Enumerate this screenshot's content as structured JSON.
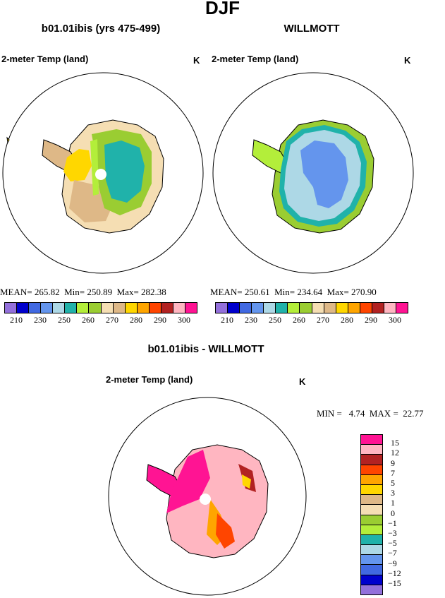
{
  "figure_title": "DJF",
  "panels": [
    {
      "id": "model",
      "title": "b01.01ibis (yrs 475-499)",
      "variable": "2-meter Temp (land)",
      "units": "K",
      "mean_label": "MEAN=",
      "mean": "265.82",
      "min_label": "Min=",
      "min": "250.89",
      "max_label": "Max=",
      "max": "282.38"
    },
    {
      "id": "obs",
      "title": "WILLMOTT",
      "variable": "2-meter Temp (land)",
      "units": "K",
      "mean_label": "MEAN=",
      "mean": "250.61",
      "min_label": "Min=",
      "min": "234.64",
      "max_label": "Max=",
      "max": "270.90"
    },
    {
      "id": "diff",
      "title": "b01.01ibis - WILLMOTT",
      "variable": "2-meter Temp (land)",
      "units": "K",
      "min_label": "MIN =",
      "min": "4.74",
      "max_label": "MAX =",
      "max": "22.77"
    }
  ],
  "temp_colorbar": {
    "colors": [
      "#9370db",
      "#0000cd",
      "#4169e1",
      "#6495ed",
      "#add8e6",
      "#20b2aa",
      "#b3ee3a",
      "#9acd32",
      "#f5deb3",
      "#deb887",
      "#ffd700",
      "#ffa500",
      "#ff4500",
      "#b22222",
      "#ffb6c1",
      "#ff1493"
    ],
    "labels": [
      "210",
      "230",
      "250",
      "260",
      "270",
      "280",
      "290",
      "300"
    ]
  },
  "diff_colorbar": {
    "colors_top_to_bottom": [
      "#ff1493",
      "#ffb6c1",
      "#b22222",
      "#ff4500",
      "#ffa500",
      "#ffd700",
      "#deb887",
      "#f5deb3",
      "#9acd32",
      "#b3ee3a",
      "#20b2aa",
      "#add8e6",
      "#6495ed",
      "#4169e1",
      "#0000cd",
      "#9370db"
    ],
    "labels_top_to_bottom": [
      "15",
      "12",
      "9",
      "7",
      "5",
      "3",
      "1",
      "0",
      "−1",
      "−3",
      "−5",
      "−7",
      "−9",
      "−12",
      "−15"
    ]
  },
  "chart_data": [
    {
      "type": "heatmap",
      "title": "b01.01ibis (yrs 475-499)",
      "subtitle": "2-meter Temp (land)",
      "units": "K",
      "projection": "polar stereographic (Antarctica)",
      "mean": 265.82,
      "min": 250.89,
      "max": 282.38,
      "levels": [
        210,
        220,
        230,
        240,
        250,
        255,
        260,
        265,
        270,
        275,
        280,
        285,
        290,
        295,
        300
      ]
    },
    {
      "type": "heatmap",
      "title": "WILLMOTT",
      "subtitle": "2-meter Temp (land)",
      "units": "K",
      "projection": "polar stereographic (Antarctica)",
      "mean": 250.61,
      "min": 234.64,
      "max": 270.9,
      "levels": [
        210,
        220,
        230,
        240,
        250,
        255,
        260,
        265,
        270,
        275,
        280,
        285,
        290,
        295,
        300
      ]
    },
    {
      "type": "heatmap",
      "title": "b01.01ibis - WILLMOTT",
      "subtitle": "2-meter Temp (land)",
      "units": "K",
      "projection": "polar stereographic (Antarctica)",
      "min": 4.74,
      "max": 22.77,
      "levels": [
        -15,
        -12,
        -9,
        -7,
        -5,
        -3,
        -1,
        0,
        1,
        3,
        5,
        7,
        9,
        12,
        15
      ]
    }
  ]
}
